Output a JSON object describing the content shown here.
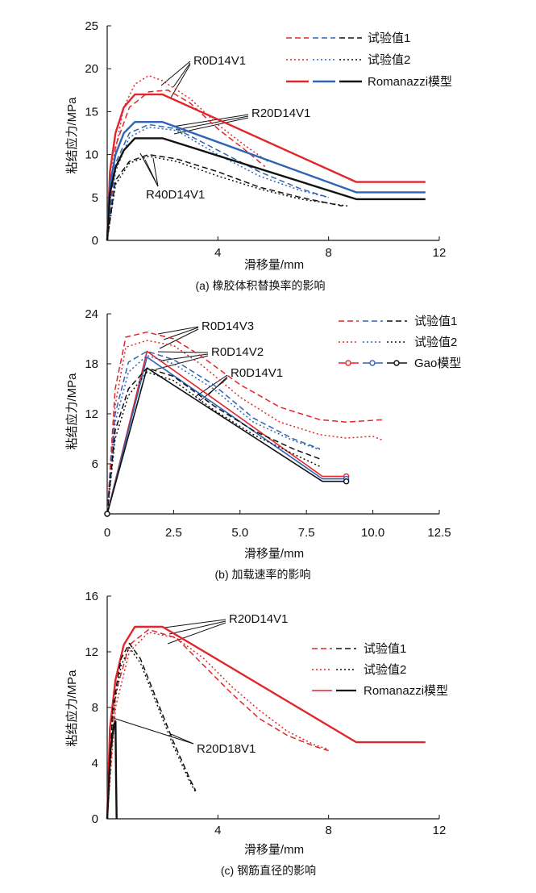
{
  "colors": {
    "red": "#e0262a",
    "blue": "#2f64b4",
    "black": "#111111"
  },
  "chart_data": [
    {
      "type": "line",
      "caption": "(a) 橡胶体积替换率的影响",
      "xlabel": "滑移量/mm",
      "ylabel": "粘结应力/MPa",
      "xlim": [
        0,
        12
      ],
      "ylim": [
        0,
        25
      ],
      "xticks": [
        "4",
        "8",
        "12"
      ],
      "xtick_values": [
        4,
        8,
        12
      ],
      "yticks": [
        "0",
        "5",
        "10",
        "15",
        "20",
        "25"
      ],
      "ytick_values": [
        0,
        5,
        10,
        15,
        20,
        25
      ],
      "legend": [
        "试验值1",
        "试验值2",
        "Romanazzi模型"
      ],
      "legend_position": "top-right",
      "annotations": [
        "R0D14V1",
        "R20D14V1",
        "R40D14V1"
      ],
      "series": [
        {
          "group": "R0D14V1",
          "kind": "test1",
          "color": "red",
          "x": [
            0,
            0.3,
            0.8,
            1.5,
            2.2,
            3,
            4,
            5,
            5.7
          ],
          "y": [
            0,
            11,
            15.5,
            17.3,
            17.5,
            16,
            13,
            10.5,
            8.6
          ]
        },
        {
          "group": "R0D14V1",
          "kind": "test2",
          "color": "red",
          "x": [
            0,
            0.2,
            0.6,
            1,
            1.5,
            2,
            3,
            4,
            5,
            5.8
          ],
          "y": [
            0,
            9,
            15.5,
            18.2,
            19.2,
            18.6,
            16.5,
            13.5,
            11,
            9.2
          ]
        },
        {
          "group": "R0D14V1",
          "kind": "model",
          "color": "red",
          "x": [
            0,
            0.1,
            0.3,
            0.6,
            1.0,
            2.0,
            9.0,
            11.5
          ],
          "y": [
            0,
            8,
            12.5,
            15.5,
            17,
            17,
            6.8,
            6.8
          ]
        },
        {
          "group": "R20D14V1",
          "kind": "test1",
          "color": "blue",
          "x": [
            0,
            0.3,
            0.8,
            1.5,
            2.5,
            4,
            5.5,
            7,
            8
          ],
          "y": [
            0,
            9,
            12.5,
            13.5,
            13,
            10.5,
            8,
            6,
            5
          ]
        },
        {
          "group": "R20D14V1",
          "kind": "test2",
          "color": "blue",
          "x": [
            0,
            0.3,
            0.8,
            1.5,
            2.5,
            4,
            5.5,
            7,
            8
          ],
          "y": [
            0,
            8,
            12,
            13.2,
            12.8,
            10,
            7.5,
            5.8,
            5
          ]
        },
        {
          "group": "R20D14V1",
          "kind": "model",
          "color": "blue",
          "x": [
            0,
            0.1,
            0.3,
            0.6,
            1.0,
            2.0,
            9.0,
            11.5
          ],
          "y": [
            0,
            6.5,
            10,
            12.5,
            13.8,
            13.8,
            5.6,
            5.6
          ]
        },
        {
          "group": "R40D14V1",
          "kind": "test1",
          "color": "black",
          "x": [
            0,
            0.3,
            0.8,
            1.5,
            2.5,
            4,
            5.5,
            7,
            8.5
          ],
          "y": [
            0,
            7,
            9.2,
            10,
            9.5,
            8,
            6.2,
            5,
            4
          ]
        },
        {
          "group": "R40D14V1",
          "kind": "test2",
          "color": "black",
          "x": [
            0,
            0.3,
            0.8,
            1.5,
            2.5,
            4,
            5.5,
            7,
            8.7
          ],
          "y": [
            0,
            6.5,
            9,
            9.8,
            9.2,
            7.5,
            6,
            4.8,
            4
          ]
        },
        {
          "group": "R40D14V1",
          "kind": "model",
          "color": "black",
          "x": [
            0,
            0.1,
            0.3,
            0.6,
            1.0,
            2.0,
            9.0,
            11.5
          ],
          "y": [
            0,
            5.5,
            8.5,
            10.5,
            11.9,
            11.9,
            4.8,
            4.8
          ]
        }
      ]
    },
    {
      "type": "line",
      "caption": "(b) 加载速率的影响",
      "xlabel": "滑移量/mm",
      "ylabel": "粘结应力/MPa",
      "xlim": [
        0,
        12.5
      ],
      "ylim": [
        0,
        24
      ],
      "xticks": [
        "0",
        "2.5",
        "5.0",
        "7.5",
        "10.0",
        "12.5"
      ],
      "xtick_values": [
        0,
        2.5,
        5,
        7.5,
        10,
        12.5
      ],
      "yticks": [
        "6",
        "12",
        "18",
        "24"
      ],
      "ytick_values": [
        6,
        12,
        18,
        24
      ],
      "legend": [
        "试验值1",
        "试验值2",
        "Gao模型"
      ],
      "legend_position": "top-right",
      "annotations": [
        "R0D14V3",
        "R0D14V2",
        "R0D14V1"
      ],
      "series": [
        {
          "group": "R0D14V3",
          "kind": "test1",
          "color": "red",
          "x": [
            0,
            0.3,
            0.7,
            1.5,
            2.5,
            3.5,
            5,
            6.5,
            8,
            9,
            10.4
          ],
          "y": [
            0,
            15,
            21.2,
            21.8,
            21,
            19,
            15.5,
            12.8,
            11.3,
            11,
            11.3
          ]
        },
        {
          "group": "R0D14V3",
          "kind": "test2",
          "color": "red",
          "x": [
            0,
            0.3,
            0.7,
            1.5,
            2.5,
            3.5,
            5,
            6.5,
            8,
            9,
            10,
            10.4
          ],
          "y": [
            0,
            13,
            20,
            20.8,
            20.2,
            18,
            14,
            11,
            9.5,
            9.1,
            9.3,
            8.8
          ]
        },
        {
          "group": "R0D14V3",
          "kind": "model",
          "color": "red",
          "x": [
            0,
            1.5,
            8.1,
            9.0
          ],
          "y": [
            0,
            19.5,
            4.5,
            4.5
          ]
        },
        {
          "group": "R0D14V2",
          "kind": "test1",
          "color": "blue",
          "x": [
            0,
            0.3,
            0.8,
            1.5,
            2.5,
            4,
            5.5,
            7,
            8
          ],
          "y": [
            0,
            12,
            18.2,
            19.5,
            18.5,
            15.5,
            11.5,
            9,
            7.8
          ]
        },
        {
          "group": "R0D14V2",
          "kind": "test2",
          "color": "blue",
          "x": [
            0,
            0.3,
            0.8,
            1.5,
            2.5,
            4,
            5.5,
            7,
            8
          ],
          "y": [
            0,
            11,
            17,
            19,
            18,
            15,
            11,
            8.8,
            7.7
          ]
        },
        {
          "group": "R0D14V2",
          "kind": "model",
          "color": "blue",
          "x": [
            0,
            1.5,
            8.1,
            9.0
          ],
          "y": [
            0,
            18.8,
            4.2,
            4.2
          ]
        },
        {
          "group": "R0D14V1",
          "kind": "test1",
          "color": "black",
          "x": [
            0,
            0.3,
            0.8,
            1.5,
            2.5,
            4,
            5.5,
            7,
            8
          ],
          "y": [
            0,
            10,
            15,
            17.5,
            16.5,
            13,
            10,
            7.8,
            6.6
          ]
        },
        {
          "group": "R0D14V1",
          "kind": "test2",
          "color": "black",
          "x": [
            0,
            0.3,
            0.8,
            1.5,
            2.5,
            4,
            5.5,
            7,
            8
          ],
          "y": [
            0,
            9,
            14.2,
            17,
            16,
            12.5,
            9.5,
            7.2,
            5.7
          ]
        },
        {
          "group": "R0D14V1",
          "kind": "model",
          "color": "black",
          "x": [
            0,
            1.5,
            8.1,
            9.0
          ],
          "y": [
            0,
            17.5,
            3.9,
            3.9
          ]
        }
      ]
    },
    {
      "type": "line",
      "caption": "(c) 钢筋直径的影响",
      "xlabel": "滑移量/mm",
      "ylabel": "粘结应力/MPa",
      "xlim": [
        0,
        12
      ],
      "ylim": [
        0,
        16
      ],
      "xticks": [
        "4",
        "8",
        "12"
      ],
      "xtick_values": [
        4,
        8,
        12
      ],
      "yticks": [
        "0",
        "4",
        "8",
        "12",
        "16"
      ],
      "ytick_values": [
        0,
        4,
        8,
        12,
        16
      ],
      "legend": [
        "试验值1",
        "试验值2",
        "Romanazzi模型"
      ],
      "legend_position": "right",
      "annotations": [
        "R20D14V1",
        "R20D18V1"
      ],
      "series": [
        {
          "group": "R20D14V1",
          "kind": "test1",
          "color": "red",
          "x": [
            0,
            0.3,
            0.8,
            1.5,
            2.5,
            3.5,
            4.5,
            5.5,
            6.5,
            7.5,
            8
          ],
          "y": [
            0,
            9,
            12.5,
            13.6,
            13,
            11,
            9,
            7.2,
            6,
            5.2,
            4.9
          ]
        },
        {
          "group": "R20D14V1",
          "kind": "test2",
          "color": "red",
          "x": [
            0,
            0.3,
            0.8,
            1.5,
            2.5,
            3.5,
            4.5,
            5.5,
            6.5,
            7.5,
            8
          ],
          "y": [
            0,
            8,
            12,
            13.4,
            13,
            11.5,
            9.5,
            7.8,
            6.3,
            5.3,
            5
          ]
        },
        {
          "group": "R20D14V1",
          "kind": "model",
          "color": "red",
          "x": [
            0,
            0.1,
            0.3,
            0.6,
            1.0,
            2.0,
            9.0,
            11.5
          ],
          "y": [
            0,
            6.5,
            10,
            12.5,
            13.8,
            13.8,
            5.5,
            5.5
          ]
        },
        {
          "group": "R20D18V1",
          "kind": "test1",
          "color": "black",
          "x": [
            0,
            0.2,
            0.5,
            0.8,
            1.2,
            1.8,
            2.4,
            3.0,
            3.2
          ],
          "y": [
            0,
            8,
            11.5,
            12.6,
            11.5,
            8.5,
            5.5,
            2.8,
            2
          ]
        },
        {
          "group": "R20D18V1",
          "kind": "test2",
          "color": "black",
          "x": [
            0,
            0.2,
            0.5,
            0.8,
            1.2,
            1.8,
            2.4,
            3.0,
            3.2
          ],
          "y": [
            0,
            7.5,
            11,
            12.3,
            11.2,
            8.2,
            5.2,
            2.6,
            1.9
          ]
        },
        {
          "group": "R20D18V1",
          "kind": "model",
          "color": "black",
          "x": [
            0,
            0.12,
            0.25,
            0.3,
            0.32,
            0.34
          ],
          "y": [
            0,
            5,
            6.8,
            7,
            3,
            0
          ]
        }
      ]
    }
  ]
}
